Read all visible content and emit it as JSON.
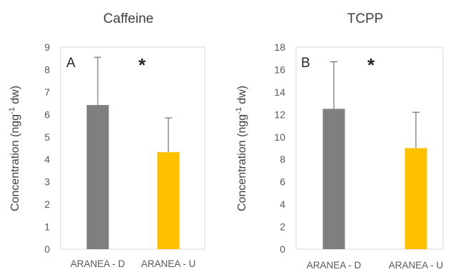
{
  "chart_data": [
    {
      "type": "bar",
      "title": "Caffeine",
      "panel_label": "A",
      "annotation": "*",
      "ylabel": "Concentration (ngg-1 dw)",
      "ylabel_parts": {
        "before": "Concentration (ngg",
        "sup": "-1",
        "after": " dw)"
      },
      "xlabel": "",
      "categories": [
        "ARANEA - D",
        "ARANEA - U"
      ],
      "values": [
        6.42,
        4.32
      ],
      "error_plus": [
        2.13,
        1.53
      ],
      "ylim": [
        0,
        9
      ],
      "yticks": [
        0,
        1,
        2,
        3,
        4,
        5,
        6,
        7,
        8,
        9
      ],
      "colors": [
        "#7f7f7f",
        "#ffc000"
      ],
      "grid": false,
      "legend": "none"
    },
    {
      "type": "bar",
      "title": "TCPP",
      "panel_label": "B",
      "annotation": "*",
      "ylabel": "Concentration (ngg-1 dw)",
      "ylabel_parts": {
        "before": "Concentration (ngg",
        "sup": "-1",
        "after": " dw)"
      },
      "xlabel": "",
      "categories": [
        "ARANEA - D",
        "ARANEA - U"
      ],
      "values": [
        12.5,
        9.0
      ],
      "error_plus": [
        4.2,
        3.2
      ],
      "ylim": [
        0,
        18
      ],
      "yticks": [
        0,
        2,
        4,
        6,
        8,
        10,
        12,
        14,
        16,
        18
      ],
      "colors": [
        "#7f7f7f",
        "#ffc000"
      ],
      "grid": false,
      "legend": "none"
    }
  ]
}
